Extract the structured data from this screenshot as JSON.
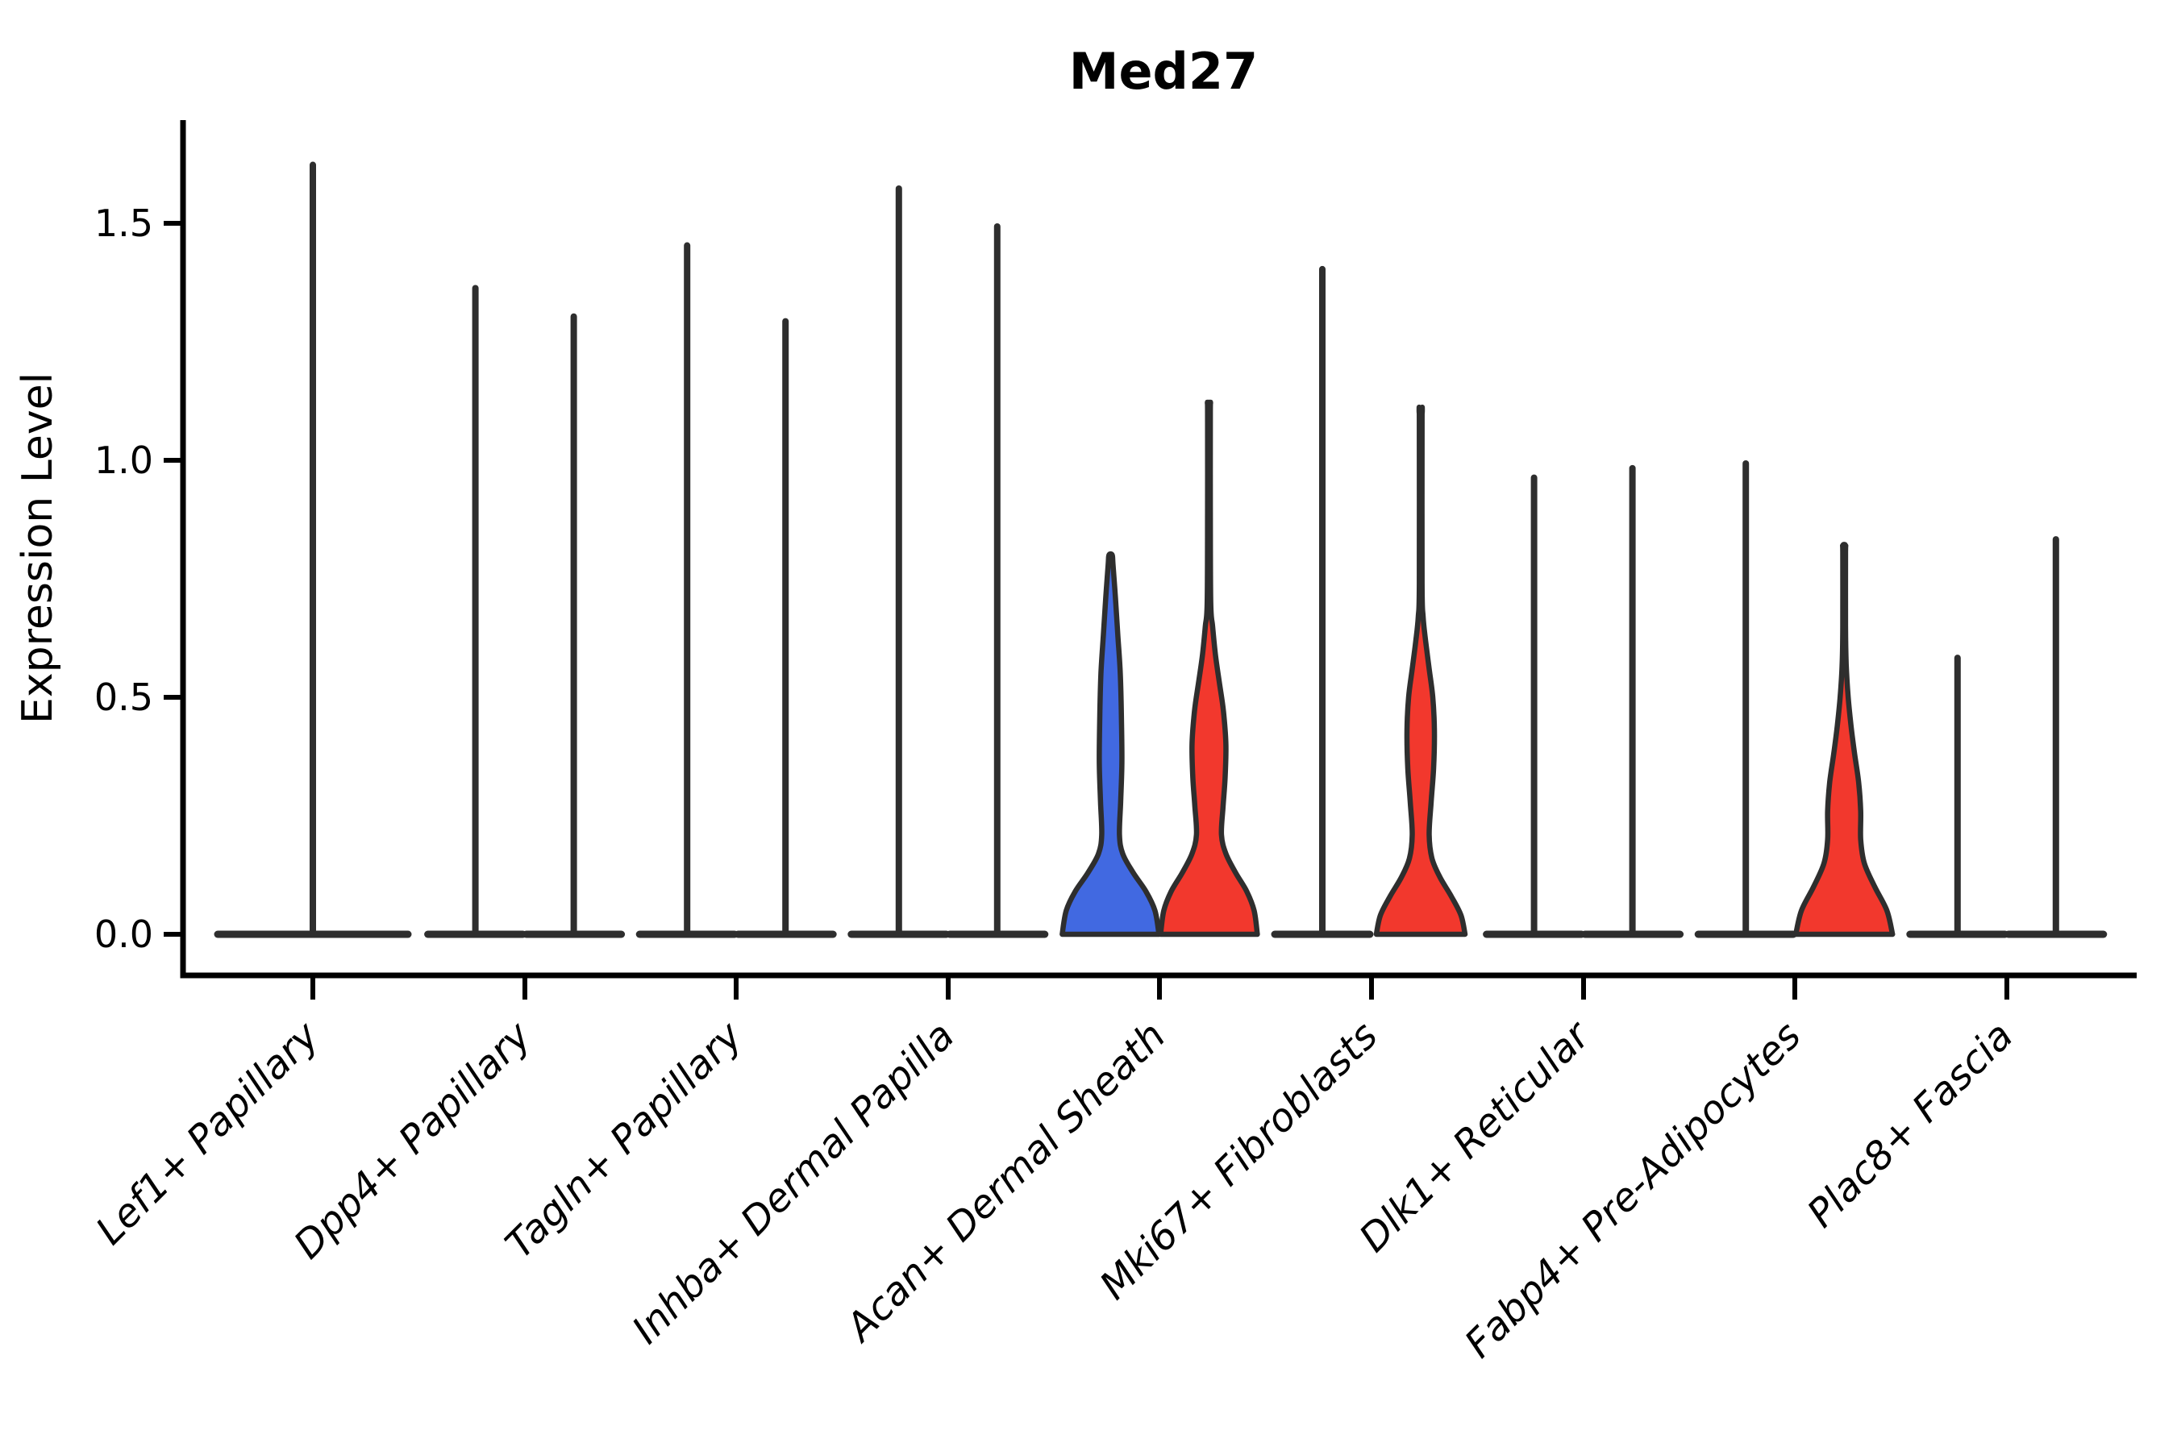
{
  "chart_data": {
    "type": "violin",
    "title": "Med27",
    "xlabel": "",
    "ylabel": "Expression Level",
    "ytick_labels": [
      "0.0",
      "0.5",
      "1.0",
      "1.5"
    ],
    "ytick_values": [
      0.0,
      0.5,
      1.0,
      1.5
    ],
    "ylim": [
      -0.087,
      1.72
    ],
    "grid": false,
    "legend": false,
    "colors": {
      "blue_fill": "#4169E1",
      "red_fill": "#F2382D",
      "ink": "#2E2E2E",
      "axis": "#000000"
    },
    "categories": [
      "Lef1+ Papillary",
      "Dpp4+ Papillary",
      "Tagln+ Papillary",
      "Inhba+ Dermal Papilla",
      "Acan+ Dermal Sheath",
      "Mki67+ Fibroblasts",
      "Dlk1+ Reticular",
      "Fabp4+ Pre-Adipocytes",
      "Plac8+ Fascia"
    ],
    "groups": [
      {
        "category": "Lef1+ Papillary",
        "violins": [
          {
            "type": "spike",
            "max": 1.63,
            "offset": 0,
            "base_halfwidth": 118
          }
        ]
      },
      {
        "category": "Dpp4+ Papillary",
        "violins": [
          {
            "type": "spike",
            "max": 1.37,
            "offset": -61,
            "base_halfwidth": 59
          },
          {
            "type": "spike",
            "max": 1.31,
            "offset": 61,
            "base_halfwidth": 59
          }
        ]
      },
      {
        "category": "Tagln+ Papillary",
        "violins": [
          {
            "type": "spike",
            "max": 1.46,
            "offset": -61,
            "base_halfwidth": 59
          },
          {
            "type": "spike",
            "max": 1.3,
            "offset": 61,
            "base_halfwidth": 59
          }
        ]
      },
      {
        "category": "Inhba+ Dermal Papilla",
        "violins": [
          {
            "type": "spike",
            "max": 1.58,
            "offset": -61,
            "base_halfwidth": 59
          },
          {
            "type": "spike",
            "max": 1.5,
            "offset": 61,
            "base_halfwidth": 59
          }
        ]
      },
      {
        "category": "Acan+ Dermal Sheath",
        "violins": [
          {
            "type": "kde",
            "fill": "blue_fill",
            "max": 0.8,
            "offset": -61,
            "profile": [
              [
                0,
                60
              ],
              [
                0.05,
                55
              ],
              [
                0.09,
                44
              ],
              [
                0.13,
                28
              ],
              [
                0.17,
                15
              ],
              [
                0.21,
                11
              ],
              [
                0.28,
                12.5
              ],
              [
                0.36,
                14
              ],
              [
                0.45,
                13.5
              ],
              [
                0.55,
                12
              ],
              [
                0.63,
                9
              ],
              [
                0.71,
                6
              ],
              [
                0.78,
                3
              ],
              [
                0.8,
                2
              ]
            ]
          },
          {
            "type": "kde",
            "fill": "red_fill",
            "max": 1.12,
            "offset": 61,
            "profile": [
              [
                0,
                60
              ],
              [
                0.05,
                56
              ],
              [
                0.09,
                47
              ],
              [
                0.13,
                33
              ],
              [
                0.17,
                21
              ],
              [
                0.21,
                15.5
              ],
              [
                0.27,
                17.5
              ],
              [
                0.33,
                20
              ],
              [
                0.4,
                21
              ],
              [
                0.47,
                18
              ],
              [
                0.53,
                13
              ],
              [
                0.59,
                8
              ],
              [
                0.65,
                4.5
              ],
              [
                0.7,
                2.2
              ],
              [
                0.9,
                1.7
              ],
              [
                1.1,
                1.7
              ],
              [
                1.12,
                1.7
              ]
            ]
          }
        ]
      },
      {
        "category": "Mki67+ Fibroblasts",
        "violins": [
          {
            "type": "spike",
            "max": 1.41,
            "offset": -61,
            "base_halfwidth": 59
          },
          {
            "type": "kde",
            "fill": "red_fill",
            "max": 1.1,
            "offset": 61,
            "profile": [
              [
                0,
                55
              ],
              [
                0.04,
                50
              ],
              [
                0.08,
                38
              ],
              [
                0.12,
                24
              ],
              [
                0.16,
                14
              ],
              [
                0.21,
                10.5
              ],
              [
                0.28,
                13
              ],
              [
                0.35,
                16
              ],
              [
                0.43,
                17
              ],
              [
                0.5,
                15
              ],
              [
                0.56,
                10.5
              ],
              [
                0.62,
                6
              ],
              [
                0.67,
                3
              ],
              [
                0.74,
                1.7
              ],
              [
                1.08,
                1.7
              ],
              [
                1.1,
                1.7
              ]
            ]
          }
        ]
      },
      {
        "category": "Dlk1+ Reticular",
        "violins": [
          {
            "type": "spike",
            "max": 0.97,
            "offset": -61,
            "base_halfwidth": 59
          },
          {
            "type": "spike",
            "max": 0.99,
            "offset": 61,
            "base_halfwidth": 59
          }
        ]
      },
      {
        "category": "Fabp4+ Pre-Adipocytes",
        "violins": [
          {
            "type": "spike",
            "max": 1.0,
            "offset": -61,
            "base_halfwidth": 59
          },
          {
            "type": "kde",
            "fill": "red_fill",
            "max": 0.82,
            "offset": 61,
            "profile": [
              [
                0,
                60
              ],
              [
                0.05,
                53
              ],
              [
                0.1,
                38
              ],
              [
                0.15,
                25
              ],
              [
                0.2,
                20.5
              ],
              [
                0.26,
                20.5
              ],
              [
                0.32,
                18
              ],
              [
                0.38,
                13
              ],
              [
                0.44,
                8.5
              ],
              [
                0.5,
                5
              ],
              [
                0.57,
                2.5
              ],
              [
                0.65,
                1.7
              ],
              [
                0.8,
                1.7
              ],
              [
                0.82,
                1.7
              ]
            ]
          }
        ]
      },
      {
        "category": "Plac8+ Fascia",
        "violins": [
          {
            "type": "spike",
            "max": 0.59,
            "offset": -61,
            "base_halfwidth": 59
          },
          {
            "type": "spike",
            "max": 0.84,
            "offset": 61,
            "base_halfwidth": 59
          }
        ]
      }
    ]
  }
}
